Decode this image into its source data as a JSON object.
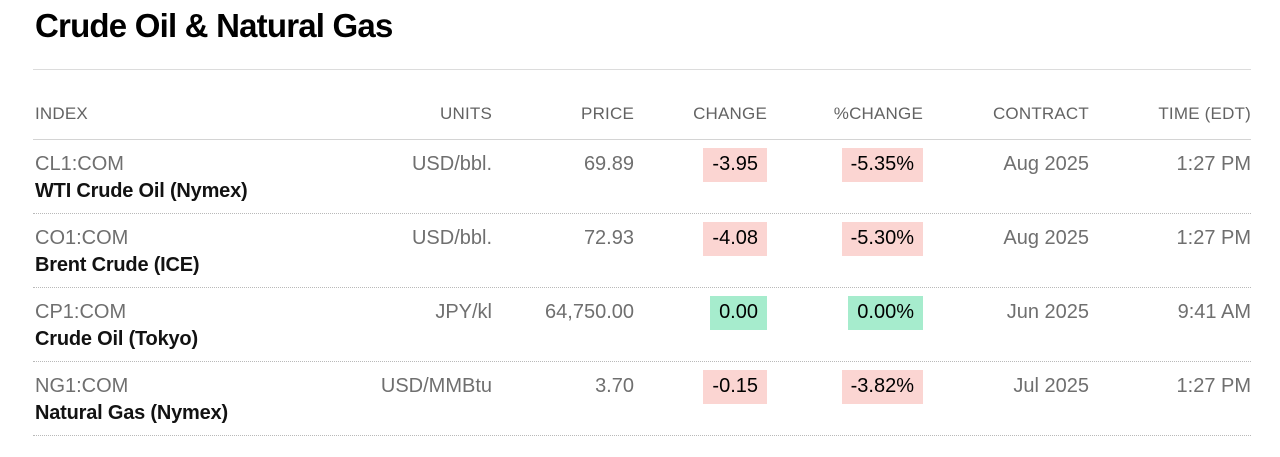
{
  "page": {
    "title": "Crude Oil & Natural Gas"
  },
  "table": {
    "columns": [
      {
        "label": "INDEX"
      },
      {
        "label": "UNITS"
      },
      {
        "label": "PRICE"
      },
      {
        "label": "CHANGE"
      },
      {
        "label": "%CHANGE"
      },
      {
        "label": "CONTRACT"
      },
      {
        "label": "TIME (EDT)"
      }
    ],
    "rows": [
      {
        "ticker": "CL1:COM",
        "name": "WTI Crude Oil (Nymex)",
        "units": "USD/bbl.",
        "price": "69.89",
        "change": "-3.95",
        "pct_change": "-5.35%",
        "change_state": "negative",
        "contract": "Aug 2025",
        "time": "1:27 PM"
      },
      {
        "ticker": "CO1:COM",
        "name": "Brent Crude (ICE)",
        "units": "USD/bbl.",
        "price": "72.93",
        "change": "-4.08",
        "pct_change": "-5.30%",
        "change_state": "negative",
        "contract": "Aug 2025",
        "time": "1:27 PM"
      },
      {
        "ticker": "CP1:COM",
        "name": "Crude Oil (Tokyo)",
        "units": "JPY/kl",
        "price": "64,750.00",
        "change": "0.00",
        "pct_change": "0.00%",
        "change_state": "flat",
        "contract": "Jun 2025",
        "time": "9:41 AM"
      },
      {
        "ticker": "NG1:COM",
        "name": "Natural Gas (Nymex)",
        "units": "USD/MMBtu",
        "price": "3.70",
        "change": "-0.15",
        "pct_change": "-3.82%",
        "change_state": "negative",
        "contract": "Jul 2025",
        "time": "1:27 PM"
      }
    ]
  },
  "colors": {
    "negative_bg": "#fbd5d2",
    "flat_bg": "#a6eccd",
    "header_text": "#636363",
    "body_text": "#6f6f6f",
    "name_text": "#121212"
  }
}
